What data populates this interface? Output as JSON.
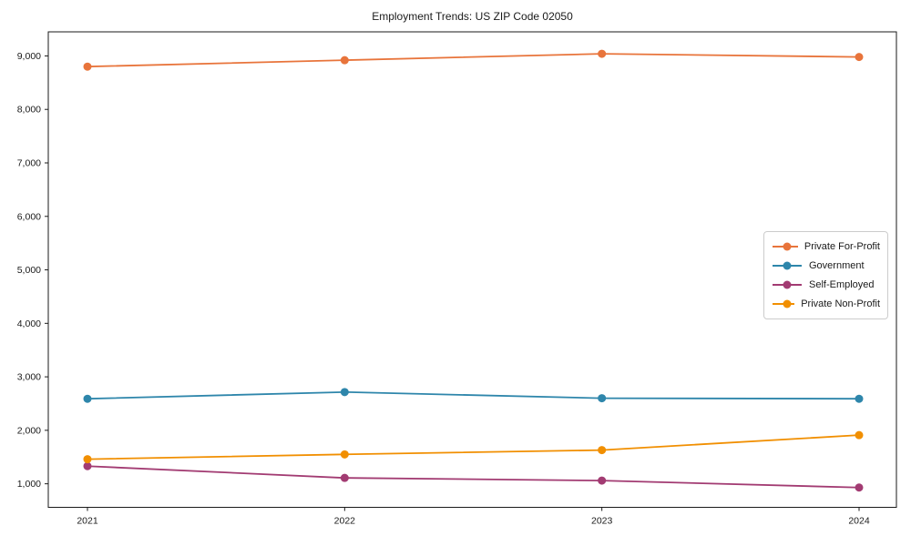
{
  "title": "Employment Trends: US ZIP Code 02050",
  "chart_data": {
    "type": "line",
    "title": "Employment Trends: US ZIP Code 02050",
    "x": [
      "2021",
      "2022",
      "2023",
      "2024"
    ],
    "xlabel": "",
    "ylabel": "",
    "ylim": [
      560,
      9450
    ],
    "y_ticks": [
      1000,
      2000,
      3000,
      4000,
      5000,
      6000,
      7000,
      8000,
      9000
    ],
    "y_tick_labels": [
      "1,000",
      "2,000",
      "3,000",
      "4,000",
      "5,000",
      "6,000",
      "7,000",
      "8,000",
      "9,000"
    ],
    "grid": false,
    "legend_position": "center-right",
    "marker": "circle",
    "series": [
      {
        "name": "Private For-Profit",
        "color": "#E8743B",
        "values": [
          8800,
          8920,
          9040,
          8980
        ]
      },
      {
        "name": "Government",
        "color": "#2E86AB",
        "values": [
          2590,
          2715,
          2600,
          2590
        ]
      },
      {
        "name": "Self-Employed",
        "color": "#A23B72",
        "values": [
          1330,
          1110,
          1060,
          930
        ]
      },
      {
        "name": "Private Non-Profit",
        "color": "#F18F01",
        "values": [
          1460,
          1550,
          1630,
          1910
        ]
      }
    ]
  }
}
